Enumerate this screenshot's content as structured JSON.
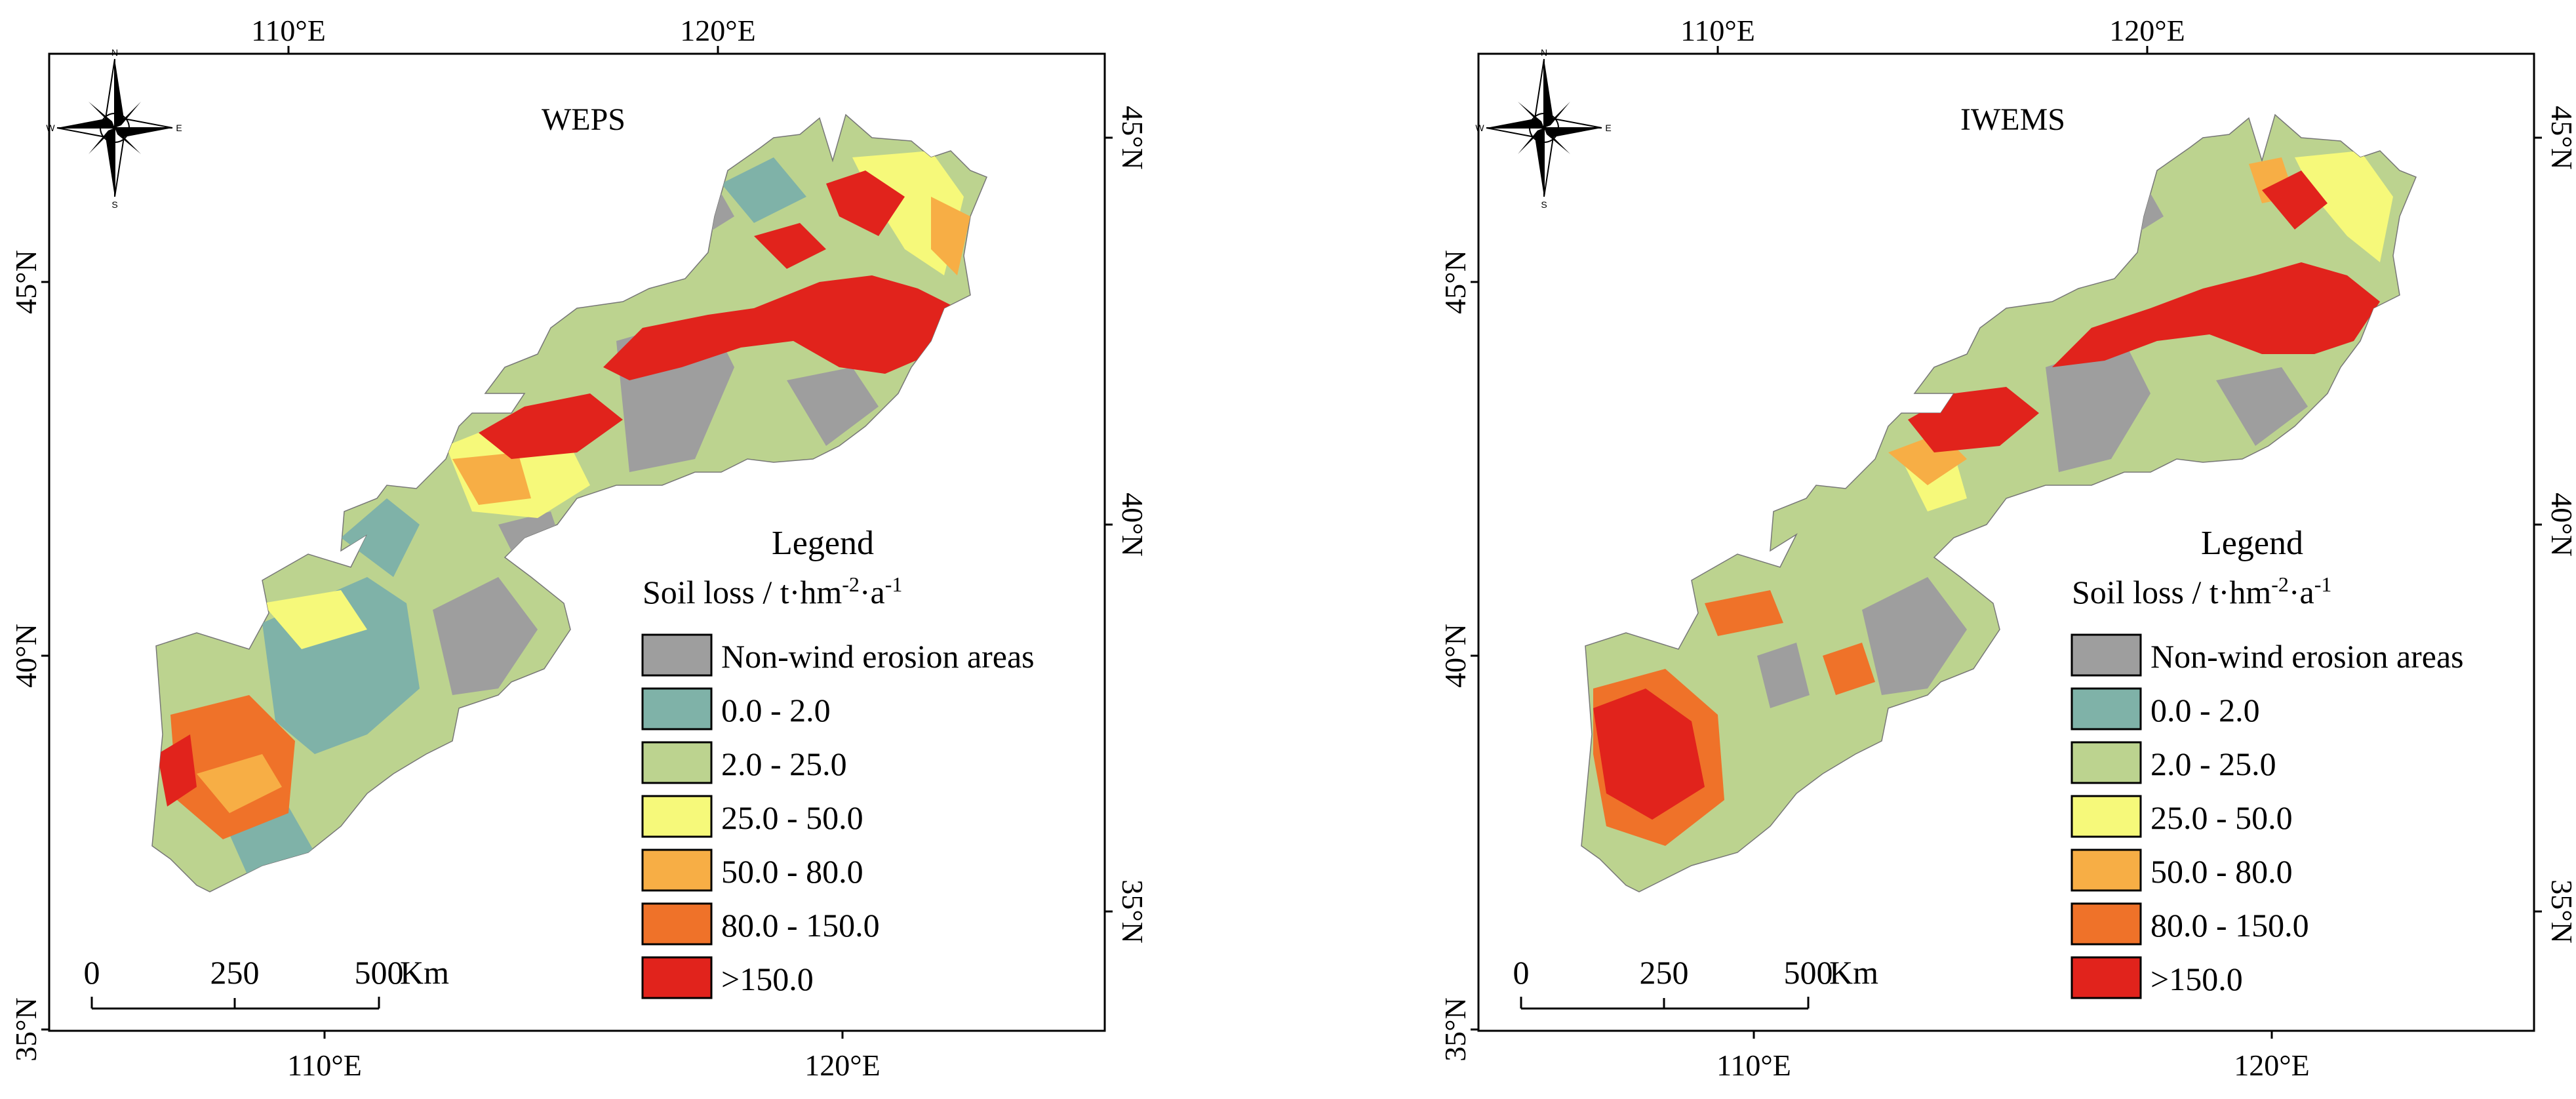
{
  "panels": [
    {
      "id": "left",
      "title": "WEPS",
      "top_ticks": [
        "110°E",
        "120°E"
      ],
      "bottom_ticks": [
        "110°E",
        "120°E"
      ],
      "left_ticks": [
        "45°N",
        "40°N",
        "35°N"
      ],
      "right_ticks": [
        "45°N",
        "40°N",
        "35°N"
      ],
      "legend": {
        "title": "Legend",
        "subtitle_prefix": "Soil loss / t·hm",
        "subtitle_sup1": "-2",
        "subtitle_mid": "·a",
        "subtitle_sup2": "-1",
        "items": [
          {
            "label": "Non-wind erosion areas",
            "color": "#9e9e9e"
          },
          {
            "label": "0.0 - 2.0",
            "color": "#7fb2a8"
          },
          {
            "label": "2.0 - 25.0",
            "color": "#bcd38f"
          },
          {
            "label": "25.0 - 50.0",
            "color": "#f6f97a"
          },
          {
            "label": "50.0 - 80.0",
            "color": "#f7ae45"
          },
          {
            "label": "80.0 - 150.0",
            "color": "#ef7229"
          },
          {
            "label": ">150.0",
            "color": "#e1231c"
          }
        ]
      },
      "scale_bar": {
        "labels": [
          "0",
          "250",
          "500"
        ],
        "unit": "Km"
      },
      "compass": {
        "n": "N",
        "s": "S",
        "e": "E",
        "w": "W"
      }
    },
    {
      "id": "right",
      "title": "IWEMS",
      "top_ticks": [
        "110°E",
        "120°E"
      ],
      "bottom_ticks": [
        "110°E",
        "120°E"
      ],
      "left_ticks": [
        "45°N",
        "40°N",
        "35°N"
      ],
      "right_ticks": [
        "45°N",
        "40°N",
        "35°N"
      ],
      "legend": {
        "title": "Legend",
        "subtitle_prefix": "Soil loss / t·hm",
        "subtitle_sup1": "-2",
        "subtitle_mid": "·a",
        "subtitle_sup2": "-1",
        "items": [
          {
            "label": "Non-wind erosion areas",
            "color": "#9e9e9e"
          },
          {
            "label": "0.0 - 2.0",
            "color": "#7fb2a8"
          },
          {
            "label": "2.0 - 25.0",
            "color": "#bcd38f"
          },
          {
            "label": "25.0 - 50.0",
            "color": "#f6f97a"
          },
          {
            "label": "50.0 - 80.0",
            "color": "#f7ae45"
          },
          {
            "label": "80.0 - 150.0",
            "color": "#ef7229"
          },
          {
            "label": ">150.0",
            "color": "#e1231c"
          }
        ]
      },
      "scale_bar": {
        "labels": [
          "0",
          "250",
          "500"
        ],
        "unit": "Km"
      },
      "compass": {
        "n": "N",
        "s": "S",
        "e": "E",
        "w": "W"
      }
    }
  ]
}
